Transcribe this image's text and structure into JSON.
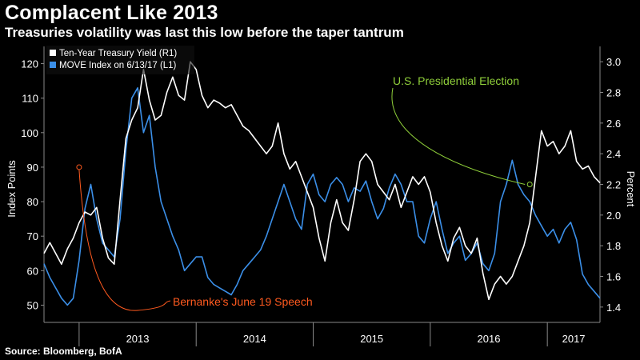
{
  "header": {
    "title": "Complacent Like 2013",
    "subtitle": "Treasuries volatility was last this low before the taper tantrum"
  },
  "footer": {
    "source": "Source: Bloomberg, BofA"
  },
  "colors": {
    "yield": "#ffffff",
    "move": "#3b8fe8",
    "election": "#8fcf3a",
    "bernanke": "#ff5a1f"
  },
  "chart_data": {
    "type": "line",
    "title": "Complacent Like 2013",
    "subtitle": "Treasuries volatility was last this low before the taper tantrum",
    "ylabel_left": "Index Points",
    "ylabel_right": "Percent",
    "x_categories": [
      "2013",
      "2014",
      "2015",
      "2016",
      "2017"
    ],
    "x_range": [
      2012.7,
      2017.45
    ],
    "yticks_left": [
      50,
      60,
      70,
      80,
      90,
      100,
      110,
      120
    ],
    "yticks_left_labels": [
      "50",
      "60",
      "70",
      "80",
      "90",
      "100",
      "110",
      "120"
    ],
    "yticks_right": [
      1.4,
      1.6,
      1.8,
      2.0,
      2.2,
      2.4,
      2.6,
      2.8,
      3.0
    ],
    "yticks_right_labels": [
      "1.4",
      "1.6",
      "1.8",
      "2.0",
      "2.2",
      "2.4",
      "2.6",
      "2.8",
      "3.0"
    ],
    "ylim_left": [
      45,
      125
    ],
    "ylim_right": [
      1.3,
      3.1
    ],
    "legend": {
      "placement": "top-left"
    },
    "series": [
      {
        "name": "Ten-Year Treasury Yield (R1)",
        "axis": "right",
        "color": "#ffffff",
        "x": [
          2012.7,
          2012.75,
          2012.8,
          2012.85,
          2012.9,
          2012.95,
          2013.0,
          2013.05,
          2013.1,
          2013.15,
          2013.2,
          2013.25,
          2013.3,
          2013.35,
          2013.4,
          2013.45,
          2013.5,
          2013.55,
          2013.6,
          2013.65,
          2013.7,
          2013.75,
          2013.8,
          2013.85,
          2013.9,
          2013.95,
          2014.0,
          2014.05,
          2014.1,
          2014.15,
          2014.2,
          2014.25,
          2014.3,
          2014.35,
          2014.4,
          2014.45,
          2014.5,
          2014.55,
          2014.6,
          2014.65,
          2014.7,
          2014.75,
          2014.8,
          2014.85,
          2014.9,
          2014.95,
          2015.0,
          2015.05,
          2015.1,
          2015.15,
          2015.2,
          2015.25,
          2015.3,
          2015.35,
          2015.4,
          2015.45,
          2015.5,
          2015.55,
          2015.6,
          2015.65,
          2015.7,
          2015.75,
          2015.8,
          2015.85,
          2015.9,
          2015.95,
          2016.0,
          2016.05,
          2016.1,
          2016.15,
          2016.2,
          2016.25,
          2016.3,
          2016.35,
          2016.4,
          2016.45,
          2016.5,
          2016.55,
          2016.6,
          2016.65,
          2016.7,
          2016.75,
          2016.8,
          2016.85,
          2016.9,
          2016.95,
          2017.0,
          2017.05,
          2017.1,
          2017.15,
          2017.2,
          2017.25,
          2017.3,
          2017.35,
          2017.4,
          2017.45
        ],
        "values": [
          1.75,
          1.82,
          1.75,
          1.68,
          1.78,
          1.85,
          1.95,
          2.02,
          2.0,
          2.05,
          1.85,
          1.72,
          1.68,
          2.1,
          2.5,
          2.62,
          2.7,
          2.95,
          2.75,
          2.62,
          2.65,
          2.8,
          2.9,
          2.78,
          2.75,
          3.0,
          2.95,
          2.78,
          2.7,
          2.75,
          2.73,
          2.7,
          2.72,
          2.65,
          2.58,
          2.55,
          2.5,
          2.45,
          2.4,
          2.45,
          2.6,
          2.4,
          2.3,
          2.35,
          2.25,
          2.15,
          2.05,
          1.85,
          1.7,
          1.95,
          2.1,
          1.95,
          1.9,
          2.1,
          2.35,
          2.4,
          2.35,
          2.2,
          2.15,
          2.1,
          2.2,
          2.05,
          2.15,
          2.25,
          2.2,
          2.25,
          2.15,
          1.95,
          1.8,
          1.7,
          1.85,
          1.92,
          1.8,
          1.75,
          1.85,
          1.62,
          1.45,
          1.55,
          1.6,
          1.55,
          1.6,
          1.7,
          1.8,
          1.95,
          2.25,
          2.55,
          2.45,
          2.48,
          2.4,
          2.45,
          2.55,
          2.35,
          2.3,
          2.32,
          2.25,
          2.21
        ]
      },
      {
        "name": "MOVE Index on 6/13/17 (L1)",
        "axis": "left",
        "color": "#3b8fe8",
        "x": [
          2012.7,
          2012.75,
          2012.8,
          2012.85,
          2012.9,
          2012.95,
          2013.0,
          2013.05,
          2013.1,
          2013.15,
          2013.2,
          2013.25,
          2013.3,
          2013.35,
          2013.4,
          2013.45,
          2013.5,
          2013.55,
          2013.6,
          2013.65,
          2013.7,
          2013.75,
          2013.8,
          2013.85,
          2013.9,
          2013.95,
          2014.0,
          2014.05,
          2014.1,
          2014.15,
          2014.2,
          2014.25,
          2014.3,
          2014.35,
          2014.4,
          2014.45,
          2014.5,
          2014.55,
          2014.6,
          2014.65,
          2014.7,
          2014.75,
          2014.8,
          2014.85,
          2014.9,
          2014.95,
          2015.0,
          2015.05,
          2015.1,
          2015.15,
          2015.2,
          2015.25,
          2015.3,
          2015.35,
          2015.4,
          2015.45,
          2015.5,
          2015.55,
          2015.6,
          2015.65,
          2015.7,
          2015.75,
          2015.8,
          2015.85,
          2015.9,
          2015.95,
          2016.0,
          2016.05,
          2016.1,
          2016.15,
          2016.2,
          2016.25,
          2016.3,
          2016.35,
          2016.4,
          2016.45,
          2016.5,
          2016.55,
          2016.6,
          2016.65,
          2016.7,
          2016.75,
          2016.8,
          2016.85,
          2016.9,
          2016.95,
          2017.0,
          2017.05,
          2017.1,
          2017.15,
          2017.2,
          2017.25,
          2017.3,
          2017.35,
          2017.4,
          2017.45
        ],
        "values": [
          62,
          58,
          55,
          52,
          50,
          52,
          63,
          78,
          85,
          75,
          68,
          66,
          64,
          75,
          95,
          110,
          113,
          100,
          105,
          90,
          80,
          75,
          70,
          66,
          60,
          62,
          64,
          64,
          58,
          56,
          55,
          54,
          53,
          56,
          60,
          62,
          64,
          66,
          70,
          75,
          80,
          85,
          80,
          75,
          72,
          85,
          88,
          82,
          80,
          85,
          87,
          85,
          80,
          84,
          83,
          86,
          80,
          75,
          78,
          84,
          88,
          85,
          80,
          80,
          70,
          68,
          75,
          80,
          72,
          65,
          68,
          70,
          63,
          65,
          68,
          62,
          60,
          65,
          80,
          85,
          92,
          85,
          82,
          80,
          76,
          73,
          70,
          72,
          68,
          72,
          74,
          69,
          59,
          56,
          54,
          52
        ]
      }
    ],
    "annotations": [
      {
        "text": "U.S. Presidential Election",
        "x": 2016.85,
        "y_right": 2.2,
        "color": "#8fcf3a"
      },
      {
        "text": "Bernanke's June 19 Speech",
        "x": 2013.0,
        "y_left": 90,
        "color": "#ff5a1f"
      }
    ]
  }
}
